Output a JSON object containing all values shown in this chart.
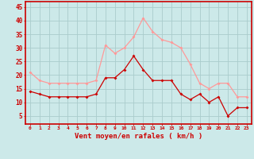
{
  "hours": [
    0,
    1,
    2,
    3,
    4,
    5,
    6,
    7,
    8,
    9,
    10,
    11,
    12,
    13,
    14,
    15,
    16,
    17,
    18,
    19,
    20,
    21,
    22,
    23
  ],
  "wind_avg": [
    14,
    13,
    12,
    12,
    12,
    12,
    12,
    13,
    19,
    19,
    22,
    27,
    22,
    18,
    18,
    18,
    13,
    11,
    13,
    10,
    12,
    5,
    8,
    8
  ],
  "wind_gust": [
    21,
    18,
    17,
    17,
    17,
    17,
    17,
    18,
    31,
    28,
    30,
    34,
    41,
    36,
    33,
    32,
    30,
    24,
    17,
    15,
    17,
    17,
    12,
    12
  ],
  "bg_color": "#cce9e9",
  "grid_color": "#aacccc",
  "line_avg_color": "#cc0000",
  "line_gust_color": "#ff9999",
  "xlabel": "Vent moyen/en rafales ( km/h )",
  "xlabel_color": "#cc0000",
  "tick_color": "#cc0000",
  "ylim": [
    2,
    47
  ],
  "yticks": [
    5,
    10,
    15,
    20,
    25,
    30,
    35,
    40,
    45
  ],
  "xlim": [
    -0.5,
    23.5
  ],
  "spine_color": "#cc0000",
  "marker_size": 2.0,
  "line_width": 0.9
}
